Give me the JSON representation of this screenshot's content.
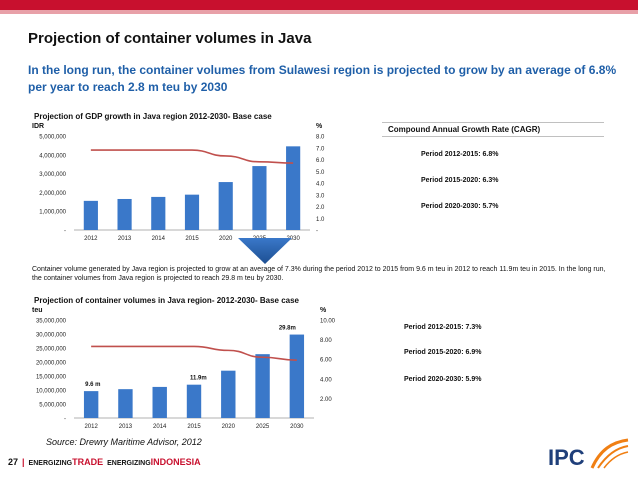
{
  "slide": {
    "title": "Projection of container volumes in Java",
    "subtitle": "In the long run, the container volumes from Sulawesi region is projected to grow by an average of 6.8% per year to reach 2.8 m teu by 2030",
    "paragraph": "Container volume generated by Java region is projected to grow at an average of 7.3% during the period 2012 to 2015 from 9.6 m teu in 2012 to reach 11.9m teu in 2015. In the long run, the container volumes from Java region is projected to reach 29.8 m teu by 2030.",
    "source": "Source: Drewry Maritime Advisor, 2012",
    "footer": {
      "page": "27",
      "sep": "|",
      "w1": "ENERGIZING",
      "w2": "TRADE",
      "w3": "ENERGIZING",
      "w4": "INDONESIA"
    },
    "logo_text": "IPC",
    "colors": {
      "brand_red": "#c8102e",
      "subtitle_blue": "#1f5fa8",
      "bar_blue": "#3a78c9",
      "line_red": "#c0504d",
      "logo_orange": "#f07f13"
    }
  },
  "cagr": {
    "title": "Compound Annual Growth Rate (CAGR)",
    "gdp_periods": [
      "Period 2012-2015:  6.8%",
      "Period  2015-2020:  6.3%",
      "Period 2020-2030:  5.7%"
    ],
    "container_periods": [
      "Period 2012-2015:  7.3%",
      "Period  2015-2020:  6.9%",
      "Period 2020-2030:  5.9%"
    ]
  },
  "chart_data": [
    {
      "type": "bar",
      "title": "Projection of GDP growth in Java region 2012-2030- Base case",
      "ylabel": "IDR",
      "y2label": "%",
      "categories": [
        "2012",
        "2013",
        "2014",
        "2015",
        "2020",
        "2025",
        "2030"
      ],
      "series": [
        {
          "kind": "bar",
          "values": [
            1550000,
            1650000,
            1760000,
            1880000,
            2550000,
            3400000,
            4450000
          ]
        },
        {
          "kind": "line",
          "axis": "right",
          "values": [
            6.8,
            6.8,
            6.8,
            6.8,
            6.3,
            5.8,
            5.7
          ]
        }
      ],
      "ylim": [
        0,
        5000000
      ],
      "y2lim": [
        0,
        8
      ],
      "yticks": [
        "-",
        "1,000,000",
        "2,000,000",
        "3,000,000",
        "4,000,000",
        "5,000,000"
      ],
      "y2ticks": [
        "-",
        "1.0",
        "2.0",
        "3.0",
        "4.0",
        "5.0",
        "6.0",
        "7.0",
        "8.0"
      ],
      "grid": false
    },
    {
      "type": "bar",
      "title": "Projection of container volumes in Java region- 2012-2030- Base case",
      "ylabel": "teu",
      "y2label": "%",
      "categories": [
        "2012",
        "2013",
        "2014",
        "2015",
        "2020",
        "2025",
        "2030"
      ],
      "series": [
        {
          "kind": "bar",
          "values": [
            9600000,
            10300000,
            11100000,
            11900000,
            16900000,
            22800000,
            29800000
          ]
        },
        {
          "kind": "line",
          "axis": "right",
          "values": [
            7.3,
            7.3,
            7.3,
            7.3,
            6.9,
            6.2,
            5.9
          ]
        }
      ],
      "ylim": [
        0,
        35000000
      ],
      "y2lim": [
        0,
        10
      ],
      "yticks": [
        "-",
        "5,000,000",
        "10,000,000",
        "15,000,000",
        "20,000,000",
        "25,000,000",
        "30,000,000",
        "35,000,000"
      ],
      "y2ticks": [
        "2.00",
        "4.00",
        "6.00",
        "8.00",
        "10.00"
      ],
      "annotations": [
        "9.6 m",
        "11.9m",
        "29.8m"
      ],
      "grid": false
    }
  ]
}
